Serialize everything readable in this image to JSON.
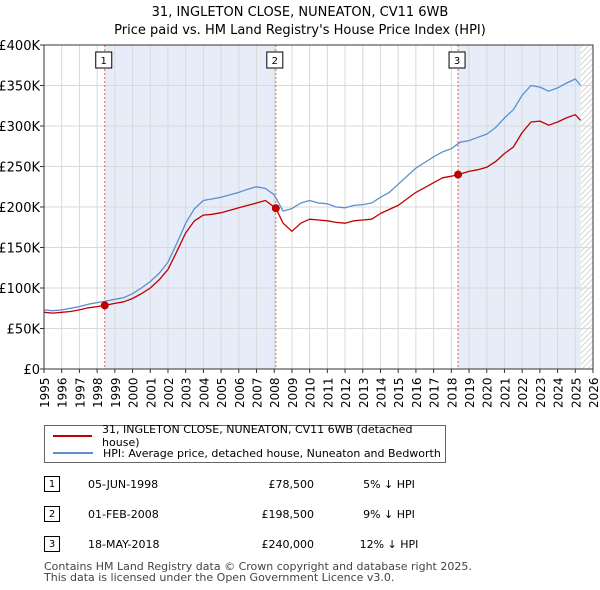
{
  "header": {
    "title_line1": "31, INGLETON CLOSE, NUNEATON, CV11 6WB",
    "title_line2": "Price paid vs. HM Land Registry's House Price Index (HPI)"
  },
  "chart_data": {
    "type": "line",
    "title": "31, INGLETON CLOSE, NUNEATON, CV11 6WB — Price paid vs. HM Land Registry's House Price Index (HPI)",
    "xlabel": "",
    "ylabel": "",
    "xlim": [
      1995,
      2026
    ],
    "ylim": [
      0,
      400000
    ],
    "yticks": [
      0,
      50000,
      100000,
      150000,
      200000,
      250000,
      300000,
      350000,
      400000
    ],
    "ytick_labels": [
      "£0",
      "£50K",
      "£100K",
      "£150K",
      "£200K",
      "£250K",
      "£300K",
      "£350K",
      "£400K"
    ],
    "xticks": [
      1995,
      1996,
      1997,
      1998,
      1999,
      2000,
      2001,
      2002,
      2003,
      2004,
      2005,
      2006,
      2007,
      2008,
      2009,
      2010,
      2011,
      2012,
      2013,
      2014,
      2015,
      2016,
      2017,
      2018,
      2019,
      2020,
      2021,
      2022,
      2023,
      2024,
      2025,
      2026
    ],
    "grid": true,
    "sold_shading": [
      [
        1998.43,
        2008.09
      ],
      [
        2018.38,
        2025.3
      ]
    ],
    "future_hatch": [
      2025.3,
      2026
    ],
    "series": [
      {
        "name": "HPI: Average price, detached house, Nuneaton and Bedworth",
        "color": "#5b8fcf",
        "x": [
          1995,
          1995.5,
          1996,
          1996.5,
          1997,
          1997.5,
          1998,
          1998.5,
          1999,
          1999.5,
          2000,
          2000.5,
          2001,
          2001.5,
          2002,
          2002.5,
          2003,
          2003.5,
          2004,
          2004.5,
          2005,
          2005.5,
          2006,
          2006.5,
          2007,
          2007.5,
          2008,
          2008.5,
          2009,
          2009.5,
          2010,
          2010.5,
          2011,
          2011.5,
          2012,
          2012.5,
          2013,
          2013.5,
          2014,
          2014.5,
          2015,
          2015.5,
          2016,
          2016.5,
          2017,
          2017.5,
          2018,
          2018.5,
          2019,
          2019.5,
          2020,
          2020.5,
          2021,
          2021.5,
          2022,
          2022.5,
          2023,
          2023.5,
          2024,
          2024.5,
          2025,
          2025.3
        ],
        "values": [
          73000,
          72000,
          73000,
          75000,
          77000,
          80000,
          82000,
          84000,
          86000,
          88000,
          93000,
          100000,
          108000,
          118000,
          132000,
          155000,
          180000,
          198000,
          208000,
          210000,
          212000,
          215000,
          218000,
          222000,
          225000,
          223000,
          215000,
          195000,
          198000,
          205000,
          208000,
          205000,
          204000,
          200000,
          199000,
          202000,
          203000,
          205000,
          212000,
          218000,
          228000,
          238000,
          248000,
          255000,
          262000,
          268000,
          272000,
          280000,
          282000,
          286000,
          290000,
          298000,
          310000,
          320000,
          338000,
          350000,
          348000,
          343000,
          347000,
          353000,
          358000,
          350000
        ]
      },
      {
        "name": "31, INGLETON CLOSE, NUNEATON, CV11 6WB (detached house)",
        "color": "#c00000",
        "x": [
          1995,
          1995.5,
          1996,
          1996.5,
          1997,
          1997.5,
          1998,
          1998.43,
          1999,
          1999.5,
          2000,
          2000.5,
          2001,
          2001.5,
          2002,
          2002.5,
          2003,
          2003.5,
          2004,
          2004.5,
          2005,
          2005.5,
          2006,
          2006.5,
          2007,
          2007.5,
          2008.09,
          2008.5,
          2009,
          2009.5,
          2010,
          2010.5,
          2011,
          2011.5,
          2012,
          2012.5,
          2013,
          2013.5,
          2014,
          2014.5,
          2015,
          2015.5,
          2016,
          2016.5,
          2017,
          2017.5,
          2018,
          2018.38,
          2019,
          2019.5,
          2020,
          2020.5,
          2021,
          2021.5,
          2022,
          2022.5,
          2023,
          2023.5,
          2024,
          2024.5,
          2025,
          2025.3
        ],
        "values": [
          70000,
          69000,
          70000,
          71000,
          73000,
          75500,
          77000,
          78500,
          81000,
          83000,
          87000,
          93000,
          100000,
          110000,
          123000,
          145000,
          168000,
          183000,
          190000,
          191000,
          193000,
          196000,
          199000,
          202000,
          205000,
          208000,
          198500,
          180000,
          170000,
          180000,
          185000,
          184000,
          183000,
          181000,
          180000,
          183000,
          184000,
          185000,
          192000,
          197000,
          202000,
          210000,
          218000,
          224000,
          230000,
          236000,
          238000,
          240000,
          244000,
          246000,
          249000,
          256000,
          266000,
          274000,
          292000,
          305000,
          306000,
          301000,
          305000,
          310000,
          314000,
          307000
        ]
      }
    ],
    "transactions": [
      {
        "id": "1",
        "x": 1998.43,
        "value": 78500
      },
      {
        "id": "2",
        "x": 2008.09,
        "value": 198500
      },
      {
        "id": "3",
        "x": 2018.38,
        "value": 240000
      }
    ]
  },
  "legend": {
    "property_label": "31, INGLETON CLOSE, NUNEATON, CV11 6WB (detached house)",
    "hpi_label": "HPI: Average price, detached house, Nuneaton and Bedworth"
  },
  "transactions_table": [
    {
      "num": "1",
      "date": "05-JUN-1998",
      "price": "£78,500",
      "relation": "5% ↓ HPI"
    },
    {
      "num": "2",
      "date": "01-FEB-2008",
      "price": "£198,500",
      "relation": "9% ↓ HPI"
    },
    {
      "num": "3",
      "date": "18-MAY-2018",
      "price": "£240,000",
      "relation": "12% ↓ HPI"
    }
  ],
  "footer": {
    "line1": "Contains HM Land Registry data © Crown copyright and database right 2025.",
    "line2": "This data is licensed under the Open Government Licence v3.0."
  }
}
